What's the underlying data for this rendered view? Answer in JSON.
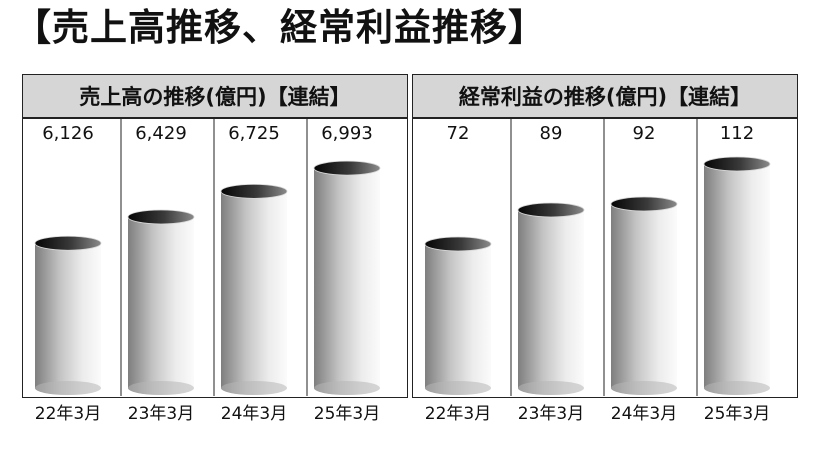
{
  "title": "【売上高推移、経常利益推移】",
  "chart_data": [
    {
      "type": "bar",
      "title": "売上高の推移(億円)【連結】",
      "categories": [
        "22年3月",
        "23年3月",
        "24年3月",
        "25年3月"
      ],
      "values": [
        6126,
        6429,
        6725,
        6993
      ],
      "value_labels": [
        "6,126",
        "6,429",
        "6,725",
        "6,993"
      ],
      "ylim": [
        4455,
        7410
      ],
      "grid": false,
      "bar_style": "3d-cylinder-gray-gradient"
    },
    {
      "type": "bar",
      "title": "経常利益の推移(億円)【連結】",
      "categories": [
        "22年3月",
        "23年3月",
        "24年3月",
        "25年3月"
      ],
      "values": [
        72,
        89,
        92,
        112
      ],
      "value_labels": [
        "72",
        "89",
        "92",
        "112"
      ],
      "ylim": [
        0,
        128
      ],
      "grid": false,
      "bar_style": "3d-cylinder-gray-gradient"
    }
  ]
}
